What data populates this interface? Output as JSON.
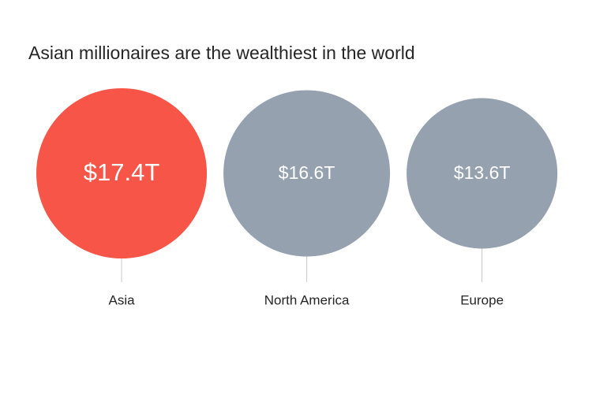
{
  "chart_data": {
    "type": "bubble",
    "title": "Asian millionaires are the wealthiest in the world",
    "categories": [
      "Asia",
      "North America",
      "Europe"
    ],
    "values": [
      17.4,
      16.6,
      13.6
    ],
    "value_labels": [
      "$17.4T",
      "$16.6T",
      "$13.6T"
    ],
    "colors": [
      "#f75548",
      "#95a1ae",
      "#95a1ae"
    ]
  }
}
